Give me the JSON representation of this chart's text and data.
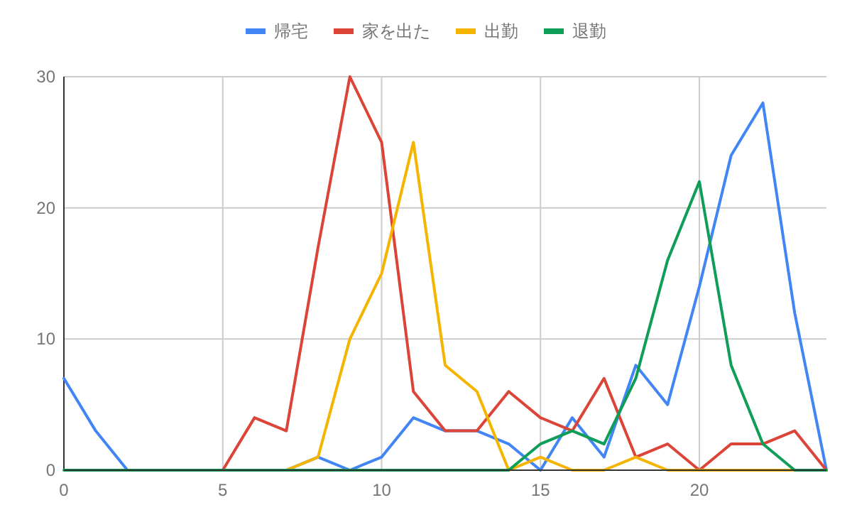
{
  "chart_data": {
    "type": "line",
    "x": [
      0,
      1,
      2,
      3,
      4,
      5,
      6,
      7,
      8,
      9,
      10,
      11,
      12,
      13,
      14,
      15,
      16,
      17,
      18,
      19,
      20,
      21,
      22,
      23,
      24
    ],
    "series": [
      {
        "name": "帰宅",
        "color": "#4285f4",
        "values": [
          7,
          3,
          0,
          null,
          null,
          null,
          null,
          0,
          1,
          0,
          1,
          4,
          3,
          3,
          2,
          0,
          4,
          1,
          8,
          5,
          14,
          24,
          28,
          12,
          0
        ]
      },
      {
        "name": "家を出た",
        "color": "#db4437",
        "values": [
          null,
          null,
          null,
          null,
          null,
          0,
          4,
          3,
          17,
          30,
          25,
          6,
          3,
          3,
          6,
          4,
          3,
          7,
          1,
          2,
          0,
          2,
          2,
          3,
          0
        ]
      },
      {
        "name": "出勤",
        "color": "#f4b400",
        "values": [
          null,
          null,
          null,
          null,
          null,
          null,
          null,
          0,
          1,
          10,
          15,
          25,
          8,
          6,
          0,
          1,
          0,
          0,
          1,
          0,
          0,
          0,
          0,
          0,
          0
        ]
      },
      {
        "name": "退勤",
        "color": "#0f9d58",
        "values": [
          0,
          0,
          0,
          0,
          0,
          0,
          0,
          0,
          0,
          0,
          0,
          0,
          0,
          0,
          0,
          2,
          3,
          2,
          7,
          16,
          22,
          8,
          2,
          0,
          0
        ]
      }
    ],
    "xlim": [
      0,
      24
    ],
    "xticks": [
      0,
      5,
      10,
      15,
      20
    ],
    "ylim": [
      0,
      30
    ],
    "yticks": [
      0,
      10,
      20,
      30
    ],
    "grid": true,
    "legend": "top",
    "marker": "none",
    "line_style": "solid"
  }
}
